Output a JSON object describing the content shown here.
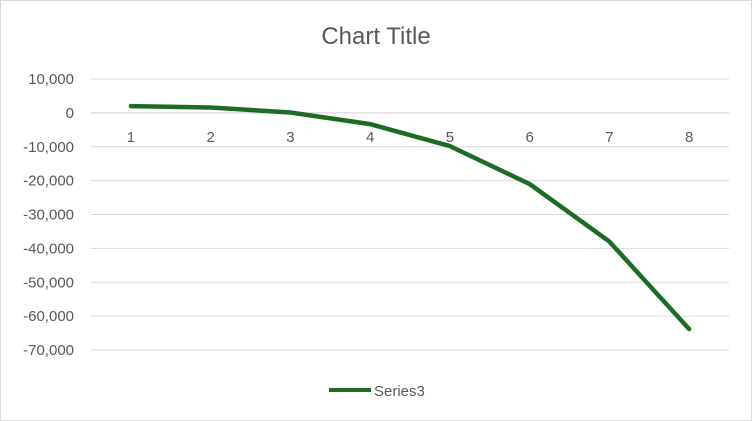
{
  "chart_data": {
    "type": "line",
    "title": "Chart Title",
    "categories": [
      "1",
      "2",
      "3",
      "4",
      "5",
      "6",
      "7",
      "8"
    ],
    "series": [
      {
        "name": "Series3",
        "color": "#1e6b24",
        "values": [
          2000,
          1600,
          100,
          -3300,
          -9800,
          -21000,
          -38000,
          -63800
        ]
      }
    ],
    "ylim": [
      -70000,
      10000
    ],
    "ytick_step": 10000,
    "ytick_labels": [
      "10,000",
      "0",
      "-10,000",
      "-20,000",
      "-30,000",
      "-40,000",
      "-50,000",
      "-60,000",
      "-70,000"
    ],
    "grid": true,
    "grid_color": "#d9d9d9",
    "legend_position": "bottom"
  }
}
